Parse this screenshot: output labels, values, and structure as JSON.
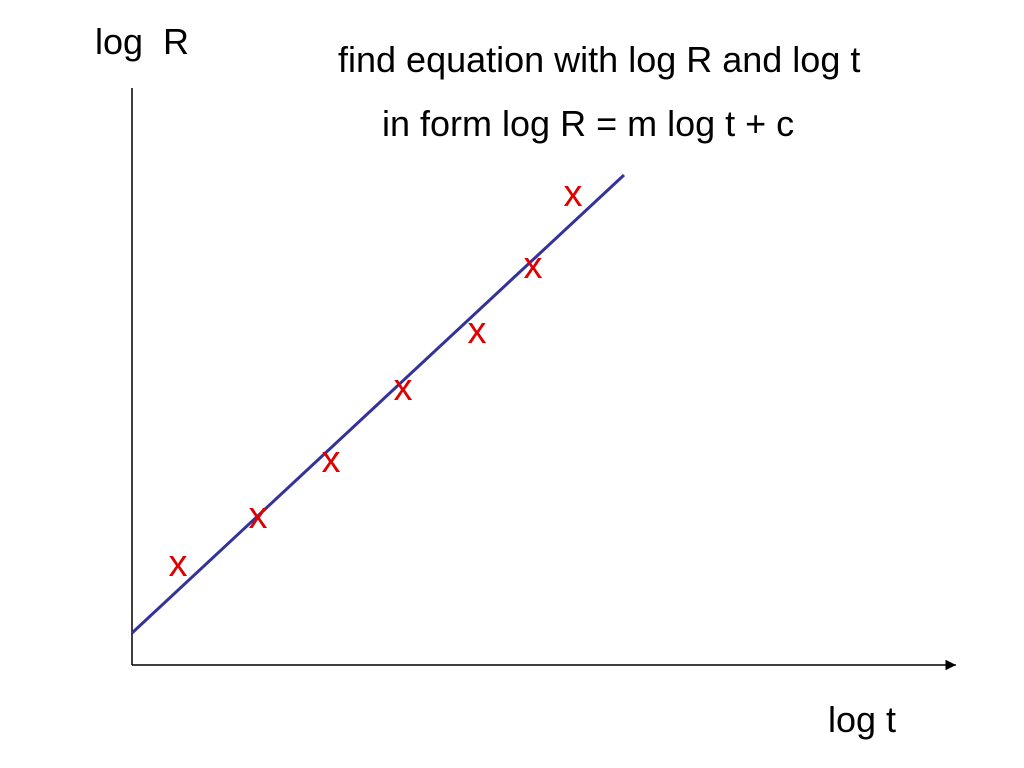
{
  "axes": {
    "y_label": "log  R",
    "x_label": "log t"
  },
  "note": [
    "find equation with log R and log t",
    "in form log R = m log t + c"
  ],
  "points": [
    "x",
    "x",
    "x",
    "x",
    "x",
    "x",
    "x"
  ]
}
